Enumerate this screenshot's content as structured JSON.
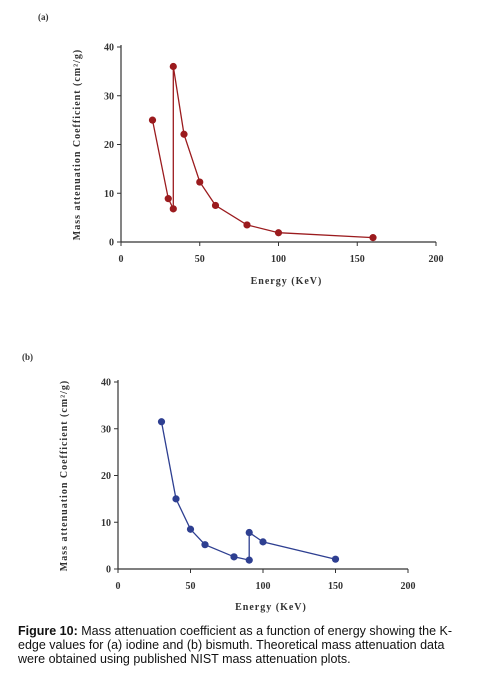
{
  "chart_data": [
    {
      "type": "line",
      "panel_label": "(a)",
      "xlabel": "Energy (KeV)",
      "ylabel": "Mass attenuation Coefficient (cm²/g)",
      "xlim": [
        0,
        200
      ],
      "ylim": [
        0,
        40
      ],
      "xticks": [
        0,
        50,
        100,
        150,
        200
      ],
      "yticks": [
        0,
        10,
        20,
        30,
        40
      ],
      "grid": false,
      "color": "#9b1b1e",
      "series": [
        {
          "x": [
            20,
            30,
            33.2,
            33.2,
            40,
            50,
            60,
            80,
            100,
            160
          ],
          "y": [
            25,
            8.9,
            6.8,
            36,
            22.1,
            12.3,
            7.5,
            3.5,
            1.9,
            0.9
          ]
        }
      ]
    },
    {
      "type": "line",
      "panel_label": "(b)",
      "xlabel": "Energy (KeV)",
      "ylabel": "Mass attenuation Coefficient (cm²/g)",
      "xlim": [
        0,
        200
      ],
      "ylim": [
        0,
        40
      ],
      "xticks": [
        0,
        50,
        100,
        150,
        200
      ],
      "yticks": [
        0,
        10,
        20,
        30,
        40
      ],
      "grid": false,
      "color": "#2e3f91",
      "series": [
        {
          "x": [
            30,
            40,
            50,
            60,
            80,
            90.5,
            90.5,
            100,
            150
          ],
          "y": [
            31.5,
            15,
            8.5,
            5.2,
            2.6,
            1.9,
            7.8,
            5.8,
            2.1
          ]
        }
      ]
    }
  ],
  "caption": {
    "label": "Figure 10:",
    "text": " Mass attenuation coefficient as a function of energy showing the K-edge values for (a) iodine and (b) bismuth. Theoretical mass attenuation data were obtained using published NIST mass attenuation plots."
  }
}
